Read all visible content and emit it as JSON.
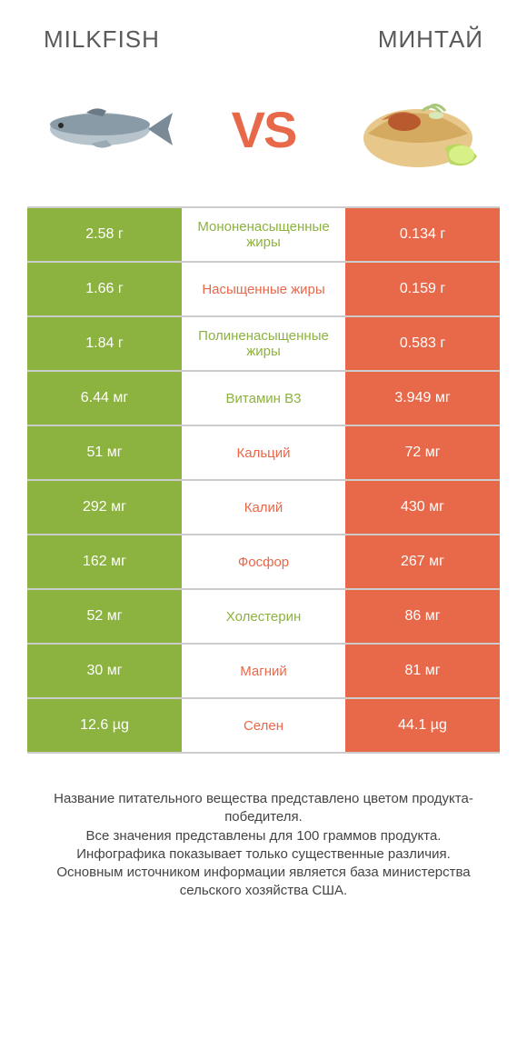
{
  "header": {
    "left_title": "MILKFISH",
    "right_title": "МИНТАЙ"
  },
  "vs_label": "VS",
  "colors": {
    "green": "#8cb23f",
    "orange": "#e8684a",
    "border": "#cccccc",
    "text": "#444444"
  },
  "table": {
    "rows": [
      {
        "left": "2.58 г",
        "label": "Мононенасыщенные жиры",
        "label_color": "green",
        "right": "0.134 г"
      },
      {
        "left": "1.66 г",
        "label": "Насыщенные жиры",
        "label_color": "orange",
        "right": "0.159 г"
      },
      {
        "left": "1.84 г",
        "label": "Полиненасыщенные жиры",
        "label_color": "green",
        "right": "0.583 г"
      },
      {
        "left": "6.44 мг",
        "label": "Витамин B3",
        "label_color": "green",
        "right": "3.949 мг"
      },
      {
        "left": "51 мг",
        "label": "Кальций",
        "label_color": "orange",
        "right": "72 мг"
      },
      {
        "left": "292 мг",
        "label": "Калий",
        "label_color": "orange",
        "right": "430 мг"
      },
      {
        "left": "162 мг",
        "label": "Фосфор",
        "label_color": "orange",
        "right": "267 мг"
      },
      {
        "left": "52 мг",
        "label": "Холестерин",
        "label_color": "green",
        "right": "86 мг"
      },
      {
        "left": "30 мг",
        "label": "Магний",
        "label_color": "orange",
        "right": "81 мг"
      },
      {
        "left": "12.6 µg",
        "label": "Селен",
        "label_color": "orange",
        "right": "44.1 µg"
      }
    ]
  },
  "footer": {
    "line1": "Название питательного вещества представлено цветом продукта-победителя.",
    "line2": "Все значения представлены для 100 граммов продукта.",
    "line3": "Инфографика показывает только существенные различия.",
    "line4": "Основным источником информации является база министерства сельского хозяйства США."
  }
}
